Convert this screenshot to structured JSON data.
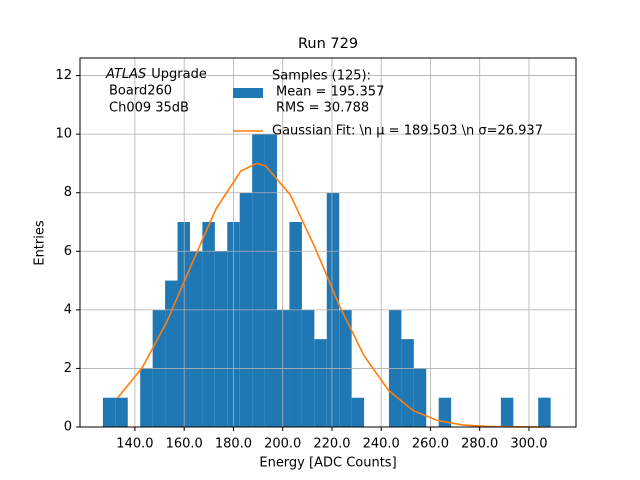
{
  "chart_data": {
    "type": "histogram",
    "title": "Run 729",
    "x_label": "Energy [ADC Counts]",
    "y_label": "Entries",
    "annotation": {
      "emphasis": "ATLAS",
      "lines": [
        "Upgrade",
        "Board260",
        "Ch009 35dB"
      ]
    },
    "bins": [
      127,
      132.05,
      137.1,
      142.15,
      147.2,
      152.25,
      157.3,
      162.35,
      167.4,
      172.45,
      177.5,
      182.55,
      187.6,
      192.65,
      197.7,
      202.75,
      207.8,
      212.85,
      217.9,
      222.95,
      228,
      233.05,
      238.1,
      243.15,
      248.2,
      253.25,
      258.3,
      263.35,
      268.4,
      273.45,
      278.5,
      283.55,
      288.6,
      293.65,
      298.7,
      303.75,
      308.8
    ],
    "counts": [
      1,
      1,
      0,
      2,
      4,
      5,
      7,
      6,
      7,
      6,
      7,
      8,
      10,
      10,
      4,
      7,
      4,
      3,
      8,
      4,
      1,
      0,
      0,
      4,
      3,
      2,
      0,
      1,
      0,
      0,
      0,
      0,
      1,
      0,
      0,
      1
    ],
    "color": "#1f77b4",
    "name": [
      "Samples (125):",
      "Mean = 195.357",
      "RMS = 30.788"
    ],
    "fit": {
      "name": "Gaussian Fit: \\n μ = 189.503 \\n σ=26.937",
      "color": "#ff7f0e",
      "x": [
        133,
        143,
        153,
        163,
        173,
        183,
        189.5,
        193,
        203,
        213,
        223,
        233,
        243,
        253,
        263,
        273,
        283,
        293,
        307
      ],
      "values": [
        1.0,
        2.03,
        3.6,
        5.55,
        7.46,
        8.74,
        9,
        8.92,
        7.94,
        6.15,
        4.15,
        2.44,
        1.25,
        0.56,
        0.22,
        0.07,
        0.02,
        0.005,
        0
      ]
    },
    "xlim": [
      117.7,
      319.1
    ],
    "ylim": [
      0,
      12.6
    ],
    "xticks": [
      {
        "value": 140,
        "label": "140.0"
      },
      {
        "value": 160,
        "label": "160.0"
      },
      {
        "value": 180,
        "label": "180.0"
      },
      {
        "value": 200,
        "label": "200.0"
      },
      {
        "value": 220,
        "label": "220.0"
      },
      {
        "value": 240,
        "label": "240.0"
      },
      {
        "value": 260,
        "label": "260.0"
      },
      {
        "value": 280,
        "label": "280.0"
      },
      {
        "value": 300,
        "label": "300.0"
      }
    ],
    "yticks": [
      0,
      2,
      4,
      6,
      8,
      10,
      12
    ],
    "grid": true
  }
}
